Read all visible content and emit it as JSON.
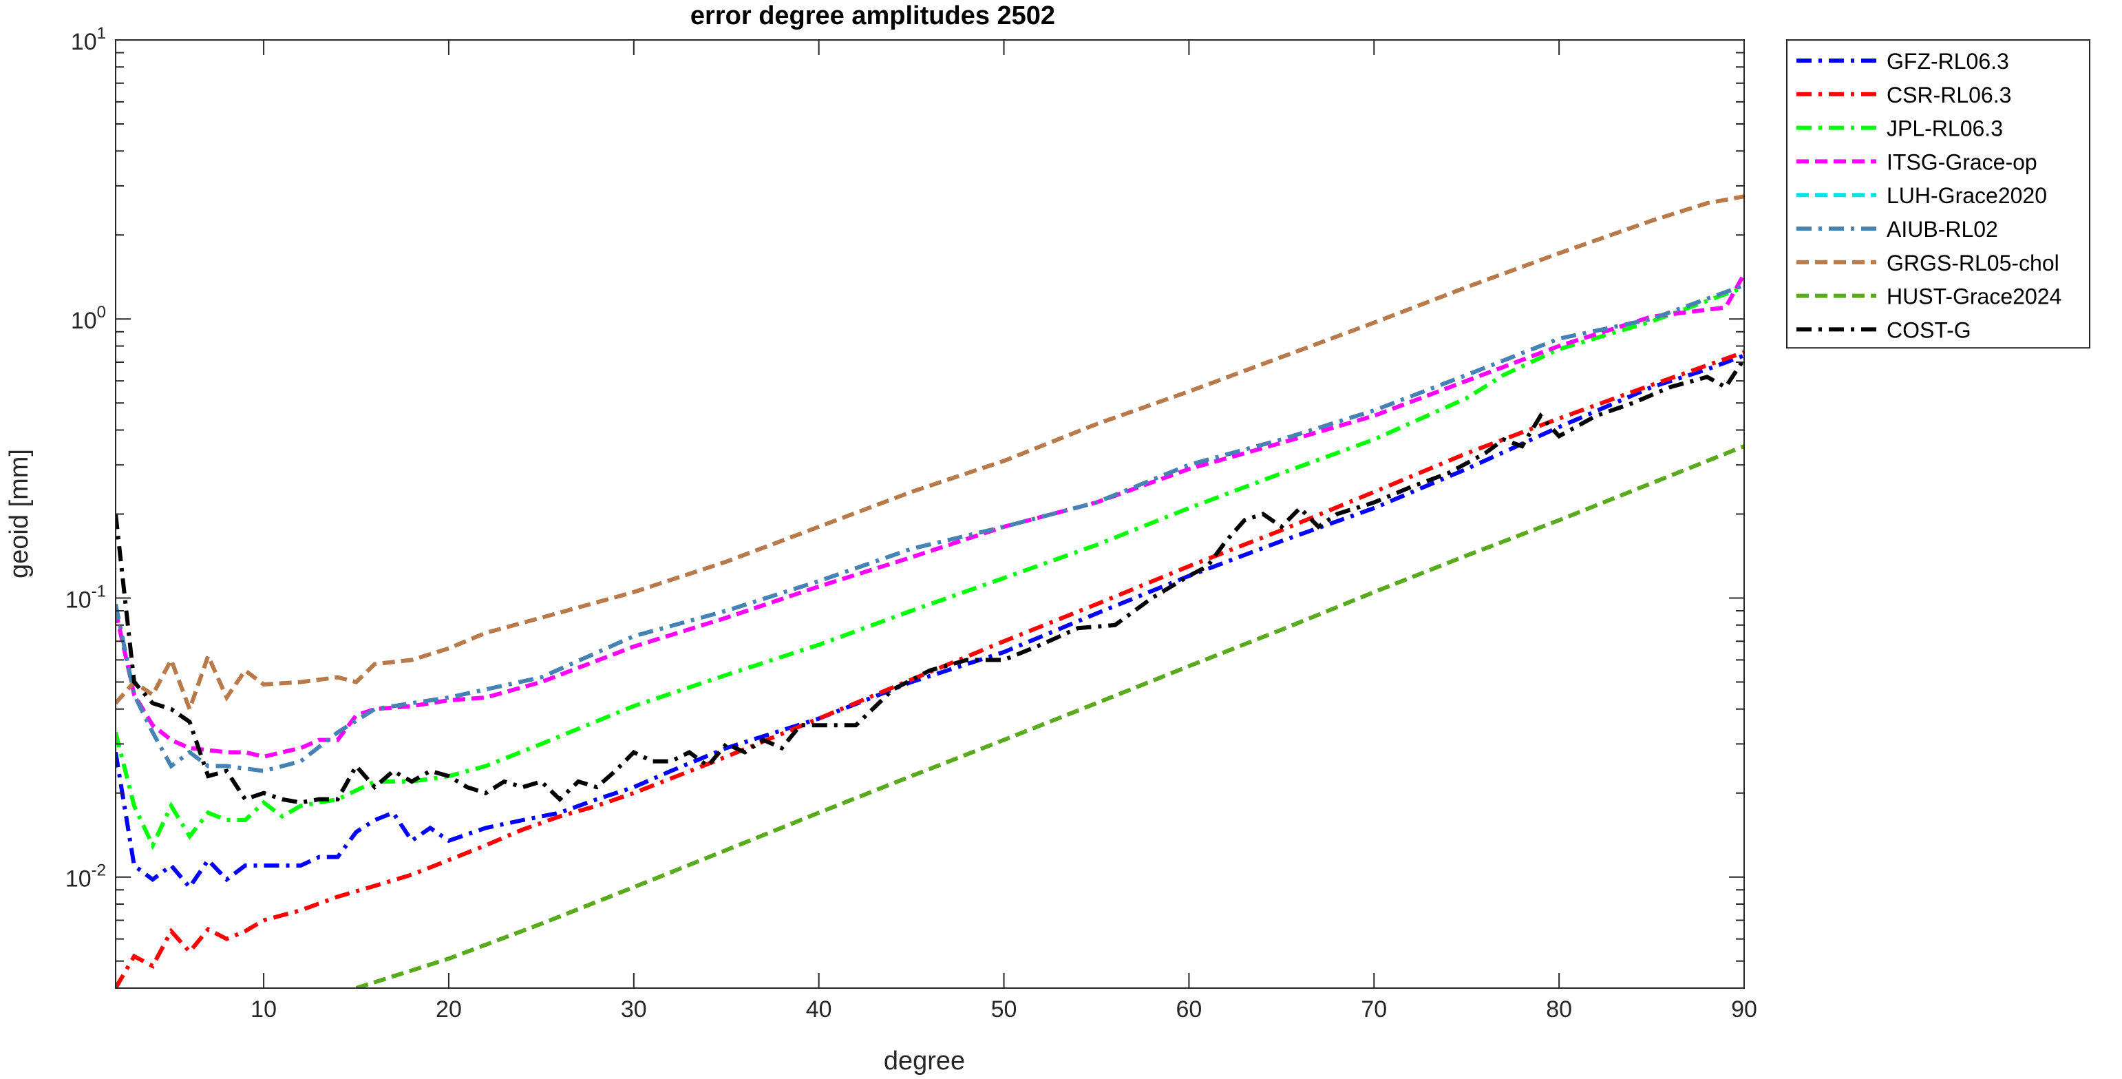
{
  "chart_data": {
    "type": "line",
    "title": "error degree amplitudes 2502",
    "xlabel": "degree",
    "ylabel": "geoid [mm]",
    "xlim": [
      2,
      90
    ],
    "ylim": [
      0.004,
      10
    ],
    "y_scale": "log",
    "x_ticks": [
      10,
      20,
      30,
      40,
      50,
      60,
      70,
      80,
      90
    ],
    "y_ticks": [
      {
        "value": 0.01,
        "base": "10",
        "exp": "-2"
      },
      {
        "value": 0.1,
        "base": "10",
        "exp": "-1"
      },
      {
        "value": 1,
        "base": "10",
        "exp": "0"
      },
      {
        "value": 10,
        "base": "10",
        "exp": "1"
      }
    ],
    "grid": false,
    "legend_position": "outside-top-right",
    "series": [
      {
        "name": "GFZ-RL06.3",
        "color": "#0000ff",
        "dash": "dashdot",
        "x": [
          2,
          3,
          4,
          5,
          6,
          7,
          8,
          9,
          10,
          12,
          13,
          14,
          15,
          16,
          17,
          18,
          19,
          20,
          22,
          24,
          26,
          28,
          30,
          32,
          35,
          40,
          45,
          50,
          55,
          60,
          65,
          70,
          75,
          80,
          85,
          88,
          90
        ],
        "y": [
          0.028,
          0.011,
          0.0098,
          0.011,
          0.0092,
          0.0115,
          0.0098,
          0.011,
          0.011,
          0.011,
          0.0118,
          0.0118,
          0.0145,
          0.016,
          0.017,
          0.0135,
          0.015,
          0.0135,
          0.015,
          0.016,
          0.017,
          0.019,
          0.021,
          0.024,
          0.029,
          0.037,
          0.05,
          0.064,
          0.088,
          0.12,
          0.16,
          0.21,
          0.29,
          0.41,
          0.57,
          0.66,
          0.74
        ]
      },
      {
        "name": "CSR-RL06.3",
        "color": "#ff0000",
        "dash": "dashdot",
        "x": [
          2,
          3,
          4,
          5,
          6,
          7,
          8,
          9,
          10,
          12,
          14,
          16,
          18,
          20,
          22,
          24,
          26,
          28,
          30,
          35,
          40,
          45,
          50,
          55,
          60,
          65,
          70,
          75,
          80,
          85,
          90
        ],
        "y": [
          0.004,
          0.0052,
          0.0048,
          0.0064,
          0.0054,
          0.0065,
          0.006,
          0.0064,
          0.007,
          0.0076,
          0.0085,
          0.0093,
          0.0102,
          0.0115,
          0.013,
          0.0148,
          0.0165,
          0.018,
          0.02,
          0.027,
          0.037,
          0.051,
          0.07,
          0.095,
          0.13,
          0.175,
          0.24,
          0.33,
          0.44,
          0.58,
          0.76
        ]
      },
      {
        "name": "JPL-RL06.3",
        "color": "#00ff00",
        "dash": "dashdot",
        "x": [
          2,
          3,
          4,
          5,
          6,
          7,
          8,
          9,
          10,
          11,
          12,
          14,
          16,
          18,
          20,
          22,
          25,
          30,
          35,
          40,
          45,
          50,
          55,
          60,
          65,
          70,
          75,
          77,
          80,
          85,
          90
        ],
        "y": [
          0.033,
          0.018,
          0.013,
          0.018,
          0.014,
          0.017,
          0.016,
          0.016,
          0.0185,
          0.0165,
          0.018,
          0.019,
          0.022,
          0.022,
          0.023,
          0.025,
          0.03,
          0.041,
          0.053,
          0.068,
          0.09,
          0.118,
          0.155,
          0.21,
          0.28,
          0.37,
          0.52,
          0.63,
          0.78,
          0.98,
          1.3
        ]
      },
      {
        "name": "ITSG-Grace-op",
        "color": "#ff00ff",
        "dash": "dashed",
        "x": [
          2,
          3,
          4,
          5,
          6,
          7,
          8,
          9,
          10,
          11,
          12,
          13,
          14,
          15,
          16,
          18,
          20,
          22,
          25,
          30,
          35,
          40,
          45,
          50,
          55,
          60,
          65,
          70,
          75,
          80,
          85,
          89,
          90
        ],
        "y": [
          0.09,
          0.045,
          0.035,
          0.031,
          0.029,
          0.0285,
          0.028,
          0.028,
          0.027,
          0.028,
          0.029,
          0.031,
          0.031,
          0.038,
          0.04,
          0.041,
          0.043,
          0.044,
          0.05,
          0.067,
          0.085,
          0.11,
          0.14,
          0.18,
          0.22,
          0.29,
          0.36,
          0.45,
          0.6,
          0.8,
          1.02,
          1.1,
          1.45
        ]
      },
      {
        "name": "LUH-Grace2020",
        "color": "#00e6e6",
        "dash": "dashed",
        "x": [],
        "y": []
      },
      {
        "name": "AIUB-RL02",
        "color": "#4682b4",
        "dash": "dashdot",
        "x": [
          2,
          3,
          4,
          5,
          6,
          7,
          8,
          10,
          12,
          14,
          16,
          18,
          20,
          25,
          30,
          35,
          40,
          45,
          50,
          55,
          60,
          65,
          70,
          75,
          80,
          85,
          90
        ],
        "y": [
          0.095,
          0.045,
          0.033,
          0.025,
          0.028,
          0.025,
          0.025,
          0.024,
          0.026,
          0.033,
          0.04,
          0.042,
          0.044,
          0.052,
          0.073,
          0.09,
          0.115,
          0.15,
          0.18,
          0.22,
          0.3,
          0.37,
          0.47,
          0.63,
          0.85,
          1.0,
          1.32
        ]
      },
      {
        "name": "GRGS-RL05-chol",
        "color": "#b87a4b",
        "dash": "dashed",
        "x": [
          2,
          3,
          4,
          5,
          6,
          7,
          8,
          9,
          10,
          12,
          14,
          15,
          16,
          18,
          20,
          22,
          25,
          30,
          35,
          40,
          45,
          50,
          55,
          60,
          65,
          70,
          75,
          80,
          85,
          88,
          90
        ],
        "y": [
          0.042,
          0.05,
          0.045,
          0.06,
          0.04,
          0.062,
          0.044,
          0.055,
          0.049,
          0.05,
          0.052,
          0.05,
          0.058,
          0.06,
          0.066,
          0.075,
          0.085,
          0.105,
          0.135,
          0.18,
          0.24,
          0.31,
          0.42,
          0.55,
          0.73,
          0.97,
          1.3,
          1.72,
          2.25,
          2.6,
          2.75
        ]
      },
      {
        "name": "HUST-Grace2024",
        "color": "#5aaa1e",
        "dash": "dashed",
        "x": [
          15,
          20,
          25,
          30,
          35,
          40,
          45,
          50,
          55,
          60,
          65,
          70,
          75,
          80,
          85,
          90
        ],
        "y": [
          0.004,
          0.0051,
          0.0068,
          0.0092,
          0.0125,
          0.017,
          0.023,
          0.031,
          0.042,
          0.057,
          0.077,
          0.105,
          0.142,
          0.19,
          0.258,
          0.35
        ]
      },
      {
        "name": "COST-G",
        "color": "#000000",
        "dash": "dashdot",
        "x": [
          2,
          3,
          4,
          5,
          6,
          7,
          8,
          9,
          10,
          11,
          12,
          13,
          14,
          15,
          16,
          17,
          18,
          19,
          20,
          21,
          22,
          23,
          24,
          25,
          26,
          27,
          28,
          29,
          30,
          31,
          32,
          33,
          34,
          35,
          36,
          37,
          38,
          39,
          40,
          42,
          44,
          46,
          48,
          50,
          52,
          54,
          56,
          58,
          60,
          61,
          62,
          63,
          64,
          65,
          66,
          67,
          68,
          70,
          72,
          74,
          76,
          77,
          78,
          79,
          80,
          82,
          84,
          86,
          88,
          89,
          90
        ],
        "y": [
          0.2,
          0.05,
          0.042,
          0.04,
          0.036,
          0.023,
          0.024,
          0.019,
          0.02,
          0.019,
          0.0185,
          0.019,
          0.019,
          0.025,
          0.021,
          0.024,
          0.022,
          0.024,
          0.023,
          0.021,
          0.02,
          0.022,
          0.021,
          0.022,
          0.019,
          0.022,
          0.021,
          0.024,
          0.028,
          0.026,
          0.026,
          0.028,
          0.025,
          0.03,
          0.028,
          0.031,
          0.029,
          0.035,
          0.035,
          0.035,
          0.047,
          0.055,
          0.06,
          0.06,
          0.068,
          0.078,
          0.08,
          0.1,
          0.12,
          0.13,
          0.16,
          0.19,
          0.2,
          0.18,
          0.21,
          0.18,
          0.2,
          0.22,
          0.25,
          0.28,
          0.33,
          0.37,
          0.35,
          0.45,
          0.38,
          0.45,
          0.5,
          0.57,
          0.62,
          0.57,
          0.72
        ]
      }
    ]
  }
}
